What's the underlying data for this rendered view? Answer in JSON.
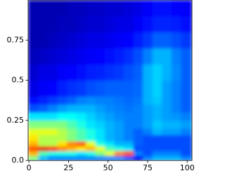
{
  "chart_data": {
    "type": "heatmap",
    "colormap": "jet",
    "zlim": [
      0,
      1
    ],
    "xlim": [
      -0.5,
      103
    ],
    "ylim": [
      0,
      1
    ],
    "xticks": [
      0,
      25,
      50,
      75,
      100
    ],
    "yticks": [
      {
        "value": 0,
        "label": "0.0"
      },
      0.25,
      0.5,
      0.75
    ],
    "x_edges": [
      -0.5,
      6,
      12,
      18,
      24,
      30,
      36,
      42,
      48,
      54,
      60,
      66,
      72,
      78,
      84,
      90,
      96,
      103
    ],
    "y_edges": [
      0,
      0.03,
      0.06,
      0.09,
      0.12,
      0.16,
      0.2,
      0.25,
      0.3,
      0.35,
      0.4,
      0.5,
      0.6,
      0.7,
      0.8,
      0.9,
      1
    ],
    "z": [
      [
        0.5,
        0.3,
        0.25,
        0.25,
        0.25,
        0.25,
        0.25,
        0.25,
        0.25,
        0.25,
        0.2,
        0.12,
        0.25,
        0.3,
        0.3,
        0.3,
        0.25
      ],
      [
        0.7,
        0.45,
        0.4,
        0.4,
        0.4,
        0.35,
        0.4,
        0.5,
        0.6,
        0.75,
        0.8,
        0.25,
        0.2,
        0.25,
        0.25,
        0.25,
        0.2
      ],
      [
        0.8,
        0.9,
        0.85,
        0.75,
        0.7,
        0.65,
        0.7,
        0.6,
        0.45,
        0.4,
        0.35,
        0.2,
        0.2,
        0.2,
        0.2,
        0.2,
        0.2
      ],
      [
        0.7,
        0.55,
        0.55,
        0.65,
        0.75,
        0.8,
        0.6,
        0.4,
        0.35,
        0.3,
        0.3,
        0.22,
        0.2,
        0.2,
        0.2,
        0.2,
        0.2
      ],
      [
        0.65,
        0.55,
        0.55,
        0.55,
        0.5,
        0.45,
        0.4,
        0.35,
        0.3,
        0.28,
        0.25,
        0.22,
        0.2,
        0.2,
        0.2,
        0.2,
        0.2
      ],
      [
        0.6,
        0.6,
        0.6,
        0.55,
        0.5,
        0.45,
        0.4,
        0.35,
        0.3,
        0.28,
        0.25,
        0.22,
        0.25,
        0.3,
        0.28,
        0.28,
        0.25
      ],
      [
        0.5,
        0.5,
        0.5,
        0.5,
        0.45,
        0.4,
        0.35,
        0.33,
        0.3,
        0.28,
        0.25,
        0.25,
        0.28,
        0.32,
        0.3,
        0.3,
        0.28
      ],
      [
        0.35,
        0.35,
        0.35,
        0.38,
        0.38,
        0.36,
        0.33,
        0.3,
        0.28,
        0.26,
        0.25,
        0.25,
        0.28,
        0.3,
        0.28,
        0.27,
        0.25
      ],
      [
        0.2,
        0.22,
        0.25,
        0.28,
        0.3,
        0.3,
        0.3,
        0.28,
        0.26,
        0.25,
        0.24,
        0.25,
        0.28,
        0.3,
        0.28,
        0.25,
        0.22
      ],
      [
        0.14,
        0.16,
        0.18,
        0.2,
        0.22,
        0.25,
        0.26,
        0.25,
        0.25,
        0.24,
        0.23,
        0.24,
        0.3,
        0.32,
        0.28,
        0.25,
        0.22
      ],
      [
        0.1,
        0.12,
        0.13,
        0.15,
        0.17,
        0.18,
        0.2,
        0.21,
        0.22,
        0.22,
        0.22,
        0.23,
        0.3,
        0.33,
        0.28,
        0.25,
        0.22
      ],
      [
        0.08,
        0.1,
        0.1,
        0.12,
        0.13,
        0.14,
        0.15,
        0.16,
        0.17,
        0.18,
        0.2,
        0.22,
        0.3,
        0.33,
        0.3,
        0.26,
        0.22
      ],
      [
        0.06,
        0.07,
        0.08,
        0.09,
        0.1,
        0.11,
        0.12,
        0.13,
        0.14,
        0.15,
        0.17,
        0.2,
        0.25,
        0.3,
        0.3,
        0.25,
        0.22
      ],
      [
        0.05,
        0.05,
        0.06,
        0.07,
        0.08,
        0.09,
        0.1,
        0.1,
        0.11,
        0.12,
        0.13,
        0.15,
        0.18,
        0.22,
        0.22,
        0.2,
        0.18
      ],
      [
        0.05,
        0.05,
        0.05,
        0.06,
        0.06,
        0.07,
        0.08,
        0.08,
        0.09,
        0.1,
        0.1,
        0.12,
        0.14,
        0.16,
        0.16,
        0.15,
        0.14
      ],
      [
        0.05,
        0.05,
        0.05,
        0.05,
        0.06,
        0.06,
        0.07,
        0.07,
        0.08,
        0.08,
        0.09,
        0.1,
        0.12,
        0.14,
        0.14,
        0.13,
        0.12
      ]
    ]
  }
}
